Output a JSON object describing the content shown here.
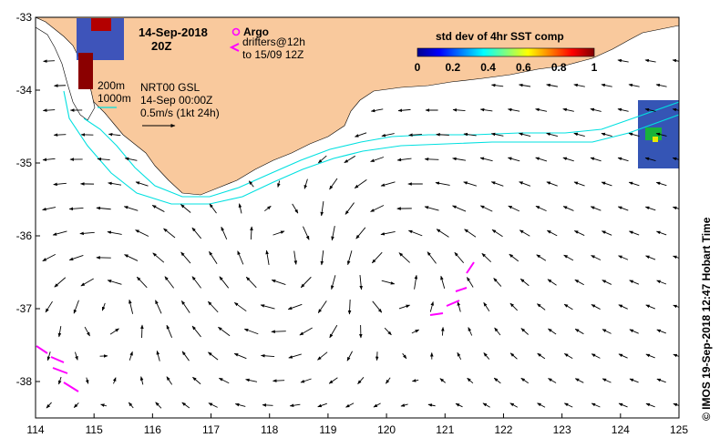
{
  "map": {
    "date": "14-Sep-2018",
    "time": "20Z",
    "legend": {
      "argo_label": "Argo",
      "drifters_label": "drifters@12h",
      "drifters_range": "to 15/09 12Z"
    },
    "isobaths": [
      "200m",
      "1000m"
    ],
    "product": "NRT00 GSL",
    "product_date": "14-Sep 00:00Z",
    "scale_label": "0.5m/s (1kt 24h)",
    "colorbar": {
      "title": "std dev of 4hr SST comp",
      "ticks": [
        "0",
        "0.2",
        "0.4",
        "0.6",
        "0.8",
        "1"
      ]
    },
    "credit": "© IMOS 19-Sep-2018 12:47 Hobart Time",
    "axes": {
      "lon_ticks": [
        "114",
        "115",
        "116",
        "117",
        "118",
        "119",
        "120",
        "121",
        "122",
        "123",
        "124",
        "125"
      ],
      "lat_ticks": [
        "-33",
        "-34",
        "-35",
        "-36",
        "-37",
        "-38"
      ],
      "lon_range": [
        114,
        125
      ],
      "lat_range": [
        -38.5,
        -33
      ]
    },
    "colors": {
      "land": "#f9c99d",
      "isobath": "#00e0e0",
      "drifter": "#ff00ff",
      "arrow": "#000000"
    }
  }
}
